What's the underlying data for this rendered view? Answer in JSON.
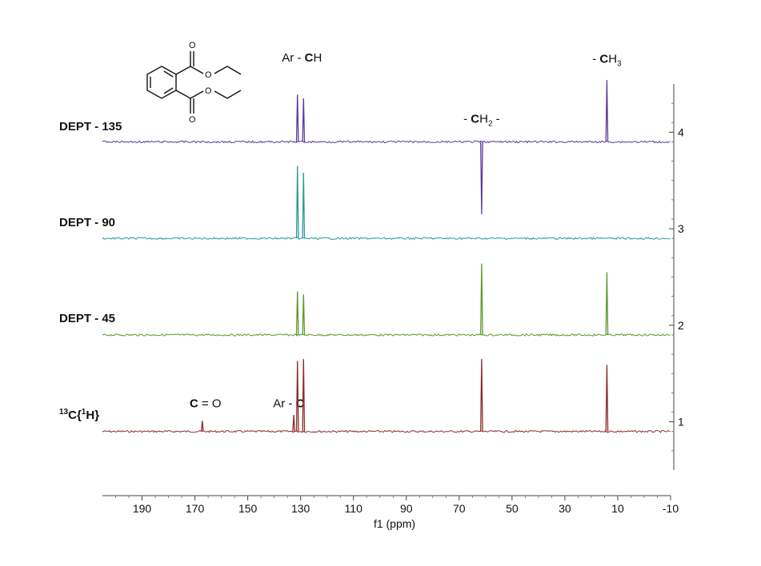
{
  "chart_data": {
    "type": "line",
    "xlabel": "f1 (ppm)",
    "xlim": [
      205,
      -10
    ],
    "x_ticks": [
      190,
      170,
      150,
      130,
      110,
      90,
      70,
      50,
      30,
      10,
      -10
    ],
    "x_tick_labels": [
      "190",
      "170",
      "150",
      "130",
      "110",
      "90",
      "70",
      "50",
      "30",
      "10",
      "-10"
    ],
    "ylim": [
      0.5,
      4.5
    ],
    "y_ticks": [
      1,
      2,
      3,
      4
    ],
    "y_tick_labels": [
      "1",
      "2",
      "3",
      "4"
    ],
    "grid": false,
    "series": [
      {
        "name": "13C{1H}",
        "label_main": "C{",
        "label_sup1": "13",
        "label_sup2": "1",
        "label_h": "H}",
        "color": "#8b2a2a",
        "baseline": 0.9,
        "peaks": [
          {
            "x": 167.2,
            "height": 0.11
          },
          {
            "x": 132.6,
            "height": 0.17
          },
          {
            "x": 131.2,
            "height": 0.73
          },
          {
            "x": 128.9,
            "height": 0.75
          },
          {
            "x": 61.5,
            "height": 0.75
          },
          {
            "x": 14.1,
            "height": 0.69
          }
        ]
      },
      {
        "name": "DEPT - 45",
        "color": "#5a9a2a",
        "baseline": 1.9,
        "peaks": [
          {
            "x": 131.2,
            "height": 0.45
          },
          {
            "x": 128.9,
            "height": 0.42
          },
          {
            "x": 61.5,
            "height": 0.74
          },
          {
            "x": 14.1,
            "height": 0.65
          }
        ]
      },
      {
        "name": "DEPT - 90",
        "color": "#2a9a98",
        "baseline": 2.9,
        "peaks": [
          {
            "x": 131.2,
            "height": 0.75
          },
          {
            "x": 128.9,
            "height": 0.68
          }
        ]
      },
      {
        "name": "DEPT - 135",
        "color": "#5a3a9a",
        "baseline": 3.9,
        "peaks": [
          {
            "x": 131.2,
            "height": 0.49
          },
          {
            "x": 128.9,
            "height": 0.45
          },
          {
            "x": 61.5,
            "height": -0.75
          },
          {
            "x": 14.1,
            "height": 0.64
          }
        ]
      }
    ],
    "annotations": [
      {
        "id": "co",
        "bold": "C",
        "rest": " = O",
        "x": 166,
        "y": 1.15
      },
      {
        "id": "arc",
        "pre": "Ar - ",
        "bold": "C",
        "x": 134.5,
        "y": 1.15
      },
      {
        "id": "arch",
        "pre": "Ar - ",
        "bold": "C",
        "rest": "H",
        "x": 129.5,
        "y": 4.73
      },
      {
        "id": "ch2",
        "pre": "- ",
        "bold": "C",
        "mid": "H",
        "sub": "2",
        "rest": " -",
        "x": 61.5,
        "y": 4.1
      },
      {
        "id": "ch3",
        "pre": "- ",
        "bold": "C",
        "mid": "H",
        "sub": "3",
        "x": 14.1,
        "y": 4.72
      }
    ]
  },
  "structure": {
    "atoms": [
      "O",
      "O",
      "O",
      "O"
    ],
    "name": "diethyl phthalate"
  }
}
